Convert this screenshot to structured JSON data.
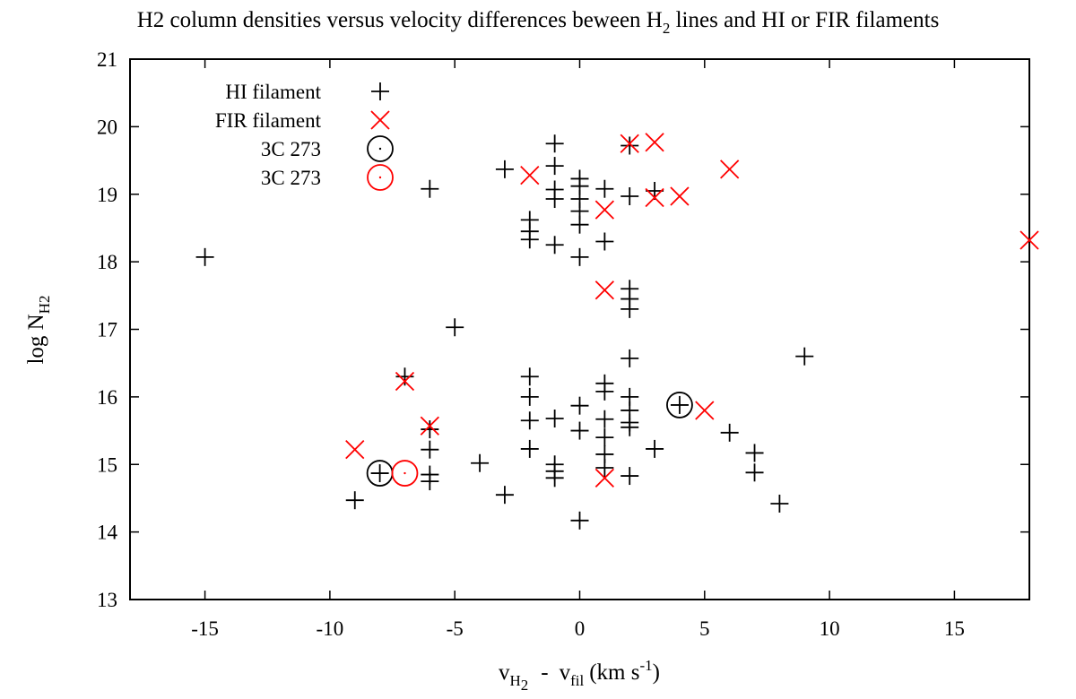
{
  "chart_data": {
    "type": "scatter",
    "title": {
      "prefix": "H2 column densities versus velocity differences beween H",
      "sub": "2",
      "suffix": " lines and HI or FIR filaments"
    },
    "xlabel": {
      "v1": "v",
      "v1_sub": "H",
      "v1_subsub": "2",
      "minus": "-",
      "v2": "v",
      "v2_sub": "fil",
      "unit_prefix": "(km s",
      "unit_sup": "-1",
      "unit_suffix": ")"
    },
    "ylabel": {
      "main": "log N",
      "sub": "H2"
    },
    "xlim": [
      -18,
      18
    ],
    "ylim": [
      13,
      21
    ],
    "xticks": [
      -15,
      -10,
      -5,
      0,
      5,
      10,
      15
    ],
    "yticks": [
      13,
      14,
      15,
      16,
      17,
      18,
      19,
      20,
      21
    ],
    "legend_position": "top-left",
    "colors": {
      "hi": "#000000",
      "fir": "#ff0000",
      "axis": "#000000"
    },
    "series": [
      {
        "name": "HI filament",
        "marker": "plus",
        "color": "#000000",
        "points": [
          [
            -15,
            18.07
          ],
          [
            -6,
            19.08
          ],
          [
            -3,
            19.37
          ],
          [
            -2,
            18.33
          ],
          [
            -2,
            18.45
          ],
          [
            -2,
            18.62
          ],
          [
            -1,
            19.75
          ],
          [
            -1,
            19.42
          ],
          [
            -1,
            19.07
          ],
          [
            -1,
            18.93
          ],
          [
            -1,
            18.25
          ],
          [
            0,
            19.23
          ],
          [
            0,
            19.12
          ],
          [
            0,
            18.93
          ],
          [
            0,
            18.75
          ],
          [
            0,
            18.55
          ],
          [
            0,
            18.07
          ],
          [
            1,
            19.08
          ],
          [
            1,
            18.3
          ],
          [
            2,
            19.72
          ],
          [
            2,
            18.97
          ],
          [
            3,
            19.05
          ],
          [
            2,
            17.6
          ],
          [
            2,
            17.45
          ],
          [
            2,
            17.3
          ],
          [
            -5,
            17.03
          ],
          [
            9,
            16.6
          ],
          [
            -7,
            16.3
          ],
          [
            2,
            16.57
          ],
          [
            -6,
            15.52
          ],
          [
            -6,
            15.22
          ],
          [
            -6,
            14.85
          ],
          [
            -6,
            14.75
          ],
          [
            -9,
            14.47
          ],
          [
            -4,
            15.02
          ],
          [
            -3,
            14.55
          ],
          [
            -2,
            16.3
          ],
          [
            -2,
            16.0
          ],
          [
            -2,
            15.65
          ],
          [
            -2,
            15.23
          ],
          [
            -1,
            15.68
          ],
          [
            -1,
            15.0
          ],
          [
            -1,
            14.9
          ],
          [
            -1,
            14.8
          ],
          [
            0,
            15.87
          ],
          [
            0,
            15.5
          ],
          [
            0,
            14.17
          ],
          [
            1,
            16.2
          ],
          [
            1,
            16.08
          ],
          [
            1,
            15.67
          ],
          [
            1,
            15.4
          ],
          [
            1,
            15.15
          ],
          [
            1,
            14.95
          ],
          [
            2,
            16.0
          ],
          [
            2,
            15.8
          ],
          [
            2,
            15.62
          ],
          [
            2,
            15.55
          ],
          [
            2,
            14.83
          ],
          [
            3,
            15.23
          ],
          [
            6,
            15.47
          ],
          [
            7,
            15.17
          ],
          [
            7,
            14.88
          ],
          [
            8,
            14.42
          ],
          [
            -8,
            14.87
          ],
          [
            4,
            15.88
          ]
        ]
      },
      {
        "name": "FIR filament",
        "marker": "x",
        "color": "#ff0000",
        "points": [
          [
            -2,
            19.28
          ],
          [
            2,
            19.75
          ],
          [
            3,
            19.77
          ],
          [
            6,
            19.37
          ],
          [
            3,
            18.95
          ],
          [
            4,
            18.97
          ],
          [
            1,
            18.77
          ],
          [
            18,
            18.32
          ],
          [
            1,
            17.58
          ],
          [
            -7,
            16.23
          ],
          [
            -6,
            15.57
          ],
          [
            -9,
            15.22
          ],
          [
            1,
            14.8
          ],
          [
            5,
            15.8
          ]
        ]
      },
      {
        "name": "3C 273",
        "marker": "circle",
        "color": "#000000",
        "points": [
          [
            -8,
            14.87
          ],
          [
            4,
            15.88
          ]
        ]
      },
      {
        "name": "3C 273",
        "marker": "circle",
        "color": "#ff0000",
        "points": [
          [
            -7,
            14.87
          ]
        ]
      }
    ]
  }
}
